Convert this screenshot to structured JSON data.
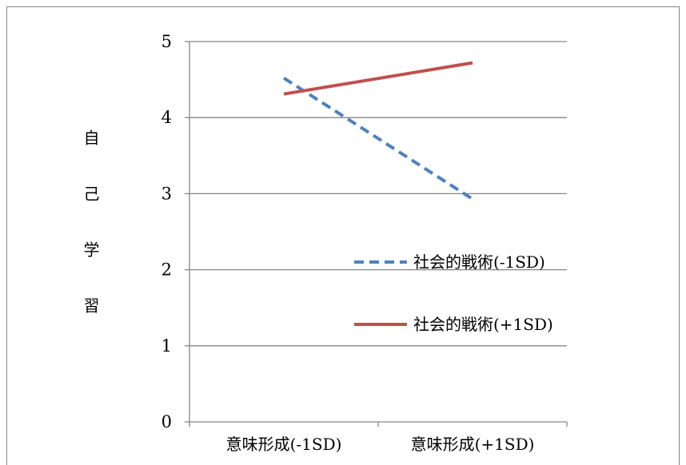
{
  "chart_data": {
    "type": "line",
    "title": "",
    "xlabel": "",
    "ylabel": "自己学習",
    "categories": [
      "意味形成(-1SD)",
      "意味形成(+1SD)"
    ],
    "series": [
      {
        "name": "社会的戦術(-1SD)",
        "values": [
          4.52,
          2.93
        ],
        "color": "#4F81BD",
        "style": "dashed"
      },
      {
        "name": "社会的戦術(+1SD)",
        "values": [
          4.31,
          4.72
        ],
        "color": "#C0504D",
        "style": "solid"
      }
    ],
    "ylim": [
      0,
      5
    ],
    "yticks": [
      0,
      1,
      2,
      3,
      4,
      5
    ],
    "grid": true,
    "legend": "right",
    "grid_color": "#868686"
  }
}
